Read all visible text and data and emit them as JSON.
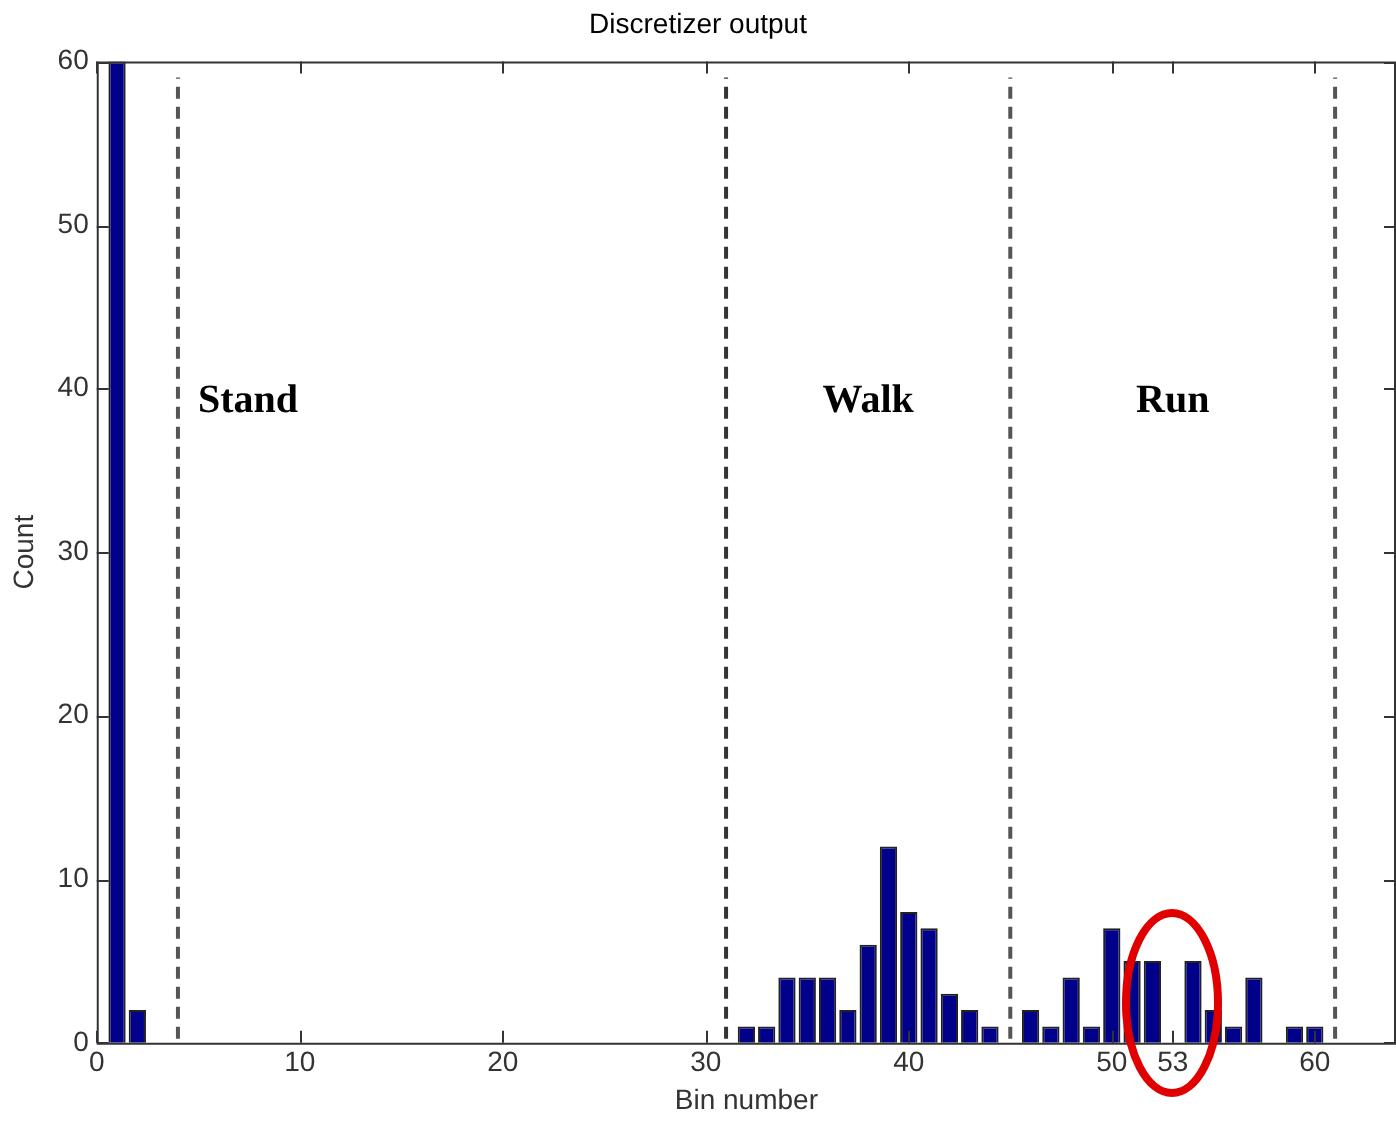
{
  "chart_data": {
    "type": "histogram",
    "title": "Discretizer output",
    "xlabel": "Bin number",
    "ylabel": "Count",
    "bins": [
      0.5,
      1.5,
      2.5,
      3.5,
      4.5,
      5.5,
      6.5,
      7.5,
      8.5,
      9.5,
      10.5,
      11.5,
      12.5,
      13.5,
      14.5,
      15.5,
      16.5,
      17.5,
      18.5,
      19.5,
      20.5,
      21.5,
      22.5,
      23.5,
      24.5,
      25.5,
      26.5,
      27.5,
      28.5,
      29.5,
      30.5,
      31.5,
      32.5,
      33.5,
      34.5,
      35.5,
      36.5,
      37.5,
      38.5,
      39.5,
      40.5,
      41.5,
      42.5,
      43.5,
      44.5,
      45.5,
      46.5,
      47.5,
      48.5,
      49.5,
      50.5,
      51.5,
      52.5,
      53.5,
      54.5,
      55.5,
      56.5,
      57.5,
      58.5,
      59.5,
      60.5
    ],
    "values": [
      60,
      2,
      0,
      0,
      0,
      0,
      0,
      0,
      0,
      0,
      0,
      0,
      0,
      0,
      0,
      0,
      0,
      0,
      0,
      0,
      0,
      0,
      0,
      0,
      0,
      0,
      0,
      0,
      0,
      0,
      0,
      1,
      1,
      4,
      4,
      4,
      2,
      6,
      12,
      8,
      7,
      3,
      2,
      1,
      0,
      2,
      1,
      4,
      1,
      7,
      5,
      5,
      0,
      5,
      2,
      1,
      4,
      0,
      1,
      1
    ],
    "color": "#00008b",
    "xlim": [
      0,
      64
    ],
    "xticks": [
      0,
      10,
      20,
      30,
      40,
      50,
      53,
      60
    ],
    "ylim": [
      0,
      60
    ],
    "yticks": [
      0,
      10,
      20,
      30,
      40,
      50,
      60
    ],
    "grid": false,
    "legend": false,
    "ref_lines": [
      {
        "axis": "x",
        "value": 4,
        "color": "#555555",
        "line_style": "dashed"
      },
      {
        "axis": "x",
        "value": 31,
        "color": "#333333",
        "line_style": "dashed"
      },
      {
        "axis": "x",
        "value": 45,
        "color": "#555555",
        "line_style": "dashed"
      },
      {
        "axis": "x",
        "value": 61,
        "color": "#555555",
        "line_style": "dashed"
      }
    ],
    "annotations": [
      "Stand",
      "Walk",
      "Run"
    ]
  }
}
